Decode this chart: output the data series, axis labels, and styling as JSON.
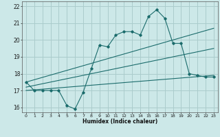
{
  "title": "",
  "xlabel": "Humidex (Indice chaleur)",
  "ylabel": "",
  "background_color": "#cce8e8",
  "grid_color": "#aacccc",
  "line_color": "#1a6b6b",
  "xlim": [
    -0.5,
    23.5
  ],
  "ylim": [
    15.7,
    22.3
  ],
  "xticks": [
    0,
    1,
    2,
    3,
    4,
    5,
    6,
    7,
    8,
    9,
    10,
    11,
    12,
    13,
    14,
    15,
    16,
    17,
    18,
    19,
    20,
    21,
    22,
    23
  ],
  "yticks": [
    16,
    17,
    18,
    19,
    20,
    21,
    22
  ],
  "main_x": [
    0,
    1,
    2,
    3,
    4,
    5,
    6,
    7,
    8,
    9,
    10,
    11,
    12,
    13,
    14,
    15,
    16,
    17,
    18,
    19,
    20,
    21,
    22,
    23
  ],
  "main_y": [
    17.5,
    17.0,
    17.0,
    17.0,
    17.0,
    16.1,
    15.9,
    16.9,
    18.3,
    19.7,
    19.6,
    20.3,
    20.5,
    20.5,
    20.3,
    21.4,
    21.8,
    21.3,
    19.8,
    19.8,
    18.0,
    17.9,
    17.8,
    17.8
  ],
  "trend1_x": [
    0,
    23
  ],
  "trend1_y": [
    17.5,
    20.7
  ],
  "trend2_x": [
    0,
    23
  ],
  "trend2_y": [
    17.2,
    19.5
  ],
  "trend3_x": [
    0,
    23
  ],
  "trend3_y": [
    17.0,
    17.9
  ]
}
